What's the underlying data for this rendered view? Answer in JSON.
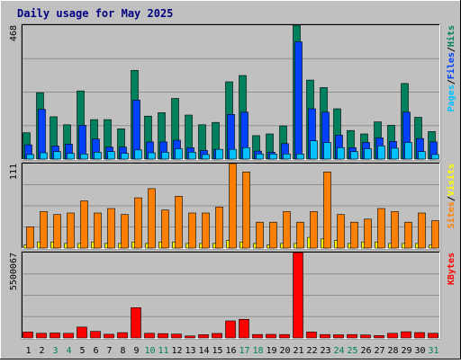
{
  "title": "Daily usage for May 2025",
  "colors": {
    "frame_bg": "#c0c0c0",
    "plot_bg": "#c0c0c0",
    "gridline": "#909090",
    "title": "#000080",
    "hits": "#00805c",
    "files": "#0040ff",
    "pages": "#00c0ff",
    "visits": "#ffff00",
    "sites": "#ff8000",
    "kbytes": "#ff0000",
    "weekend_label": "#00805c",
    "weekday_label": "#000000"
  },
  "chart_data": [
    {
      "type": "bar",
      "ymax_label": "468",
      "ylim": [
        0,
        468
      ],
      "side_labels": [
        "Pages",
        "Files",
        "Hits"
      ],
      "categories": [
        "1",
        "2",
        "3",
        "4",
        "5",
        "6",
        "7",
        "8",
        "9",
        "10",
        "11",
        "12",
        "13",
        "14",
        "15",
        "16",
        "17",
        "18",
        "19",
        "20",
        "21",
        "22",
        "23",
        "24",
        "25",
        "26",
        "27",
        "28",
        "29",
        "30",
        "31"
      ],
      "weekend_days": [
        "3",
        "4",
        "10",
        "11",
        "17",
        "18",
        "24",
        "25",
        "31"
      ],
      "series": [
        {
          "name": "Hits",
          "color_key": "hits",
          "values": [
            92,
            232,
            148,
            120,
            238,
            138,
            138,
            106,
            310,
            150,
            162,
            212,
            154,
            120,
            128,
            270,
            292,
            82,
            88,
            116,
            468,
            276,
            250,
            176,
            100,
            88,
            130,
            118,
            264,
            146,
            96
          ]
        },
        {
          "name": "Files",
          "color_key": "files",
          "values": [
            50,
            174,
            46,
            52,
            118,
            70,
            42,
            42,
            206,
            60,
            60,
            66,
            40,
            30,
            34,
            156,
            164,
            28,
            24,
            54,
            410,
            176,
            164,
            84,
            40,
            58,
            74,
            62,
            164,
            72,
            60
          ]
        },
        {
          "name": "Pages",
          "color_key": "pages",
          "values": [
            16,
            22,
            26,
            20,
            18,
            24,
            26,
            20,
            32,
            22,
            24,
            36,
            24,
            16,
            34,
            34,
            40,
            18,
            18,
            18,
            18,
            64,
            58,
            40,
            26,
            36,
            46,
            38,
            58,
            26,
            16
          ]
        }
      ]
    },
    {
      "type": "bar",
      "ymax_label": "111",
      "ylim": [
        0,
        111
      ],
      "side_labels": [
        "Sites",
        "Visits"
      ],
      "categories": [
        "1",
        "2",
        "3",
        "4",
        "5",
        "6",
        "7",
        "8",
        "9",
        "10",
        "11",
        "12",
        "13",
        "14",
        "15",
        "16",
        "17",
        "18",
        "19",
        "20",
        "21",
        "22",
        "23",
        "24",
        "25",
        "26",
        "27",
        "28",
        "29",
        "30",
        "31"
      ],
      "weekend_days": [
        "3",
        "4",
        "10",
        "11",
        "17",
        "18",
        "24",
        "25",
        "31"
      ],
      "series": [
        {
          "name": "Visits",
          "color_key": "visits",
          "values": [
            4,
            8,
            8,
            6,
            6,
            8,
            6,
            6,
            8,
            6,
            8,
            8,
            6,
            6,
            6,
            10,
            8,
            6,
            4,
            6,
            6,
            14,
            12,
            10,
            6,
            8,
            8,
            6,
            6,
            6,
            4
          ]
        },
        {
          "name": "Sites",
          "color_key": "sites",
          "values": [
            28,
            48,
            44,
            46,
            62,
            46,
            52,
            44,
            66,
            78,
            50,
            68,
            46,
            46,
            54,
            111,
            100,
            34,
            34,
            48,
            34,
            48,
            100,
            44,
            34,
            38,
            52,
            48,
            34,
            46,
            36
          ]
        }
      ]
    },
    {
      "type": "bar",
      "ymax_label": "5500067",
      "ylim": [
        0,
        5500067
      ],
      "side_labels": [
        "KBytes"
      ],
      "categories": [
        "1",
        "2",
        "3",
        "4",
        "5",
        "6",
        "7",
        "8",
        "9",
        "10",
        "11",
        "12",
        "13",
        "14",
        "15",
        "16",
        "17",
        "18",
        "19",
        "20",
        "21",
        "22",
        "23",
        "24",
        "25",
        "26",
        "27",
        "28",
        "29",
        "30",
        "31"
      ],
      "weekend_days": [
        "3",
        "4",
        "10",
        "11",
        "17",
        "18",
        "24",
        "25",
        "31"
      ],
      "series": [
        {
          "name": "KBytes",
          "color_key": "kbytes",
          "values": [
            380000,
            300000,
            320000,
            300000,
            700000,
            420000,
            240000,
            340000,
            1950000,
            300000,
            280000,
            250000,
            130000,
            210000,
            290000,
            1100000,
            1200000,
            220000,
            230000,
            220000,
            5500067,
            380000,
            220000,
            200000,
            220000,
            190000,
            150000,
            300000,
            400000,
            350000,
            300000
          ]
        }
      ]
    }
  ]
}
